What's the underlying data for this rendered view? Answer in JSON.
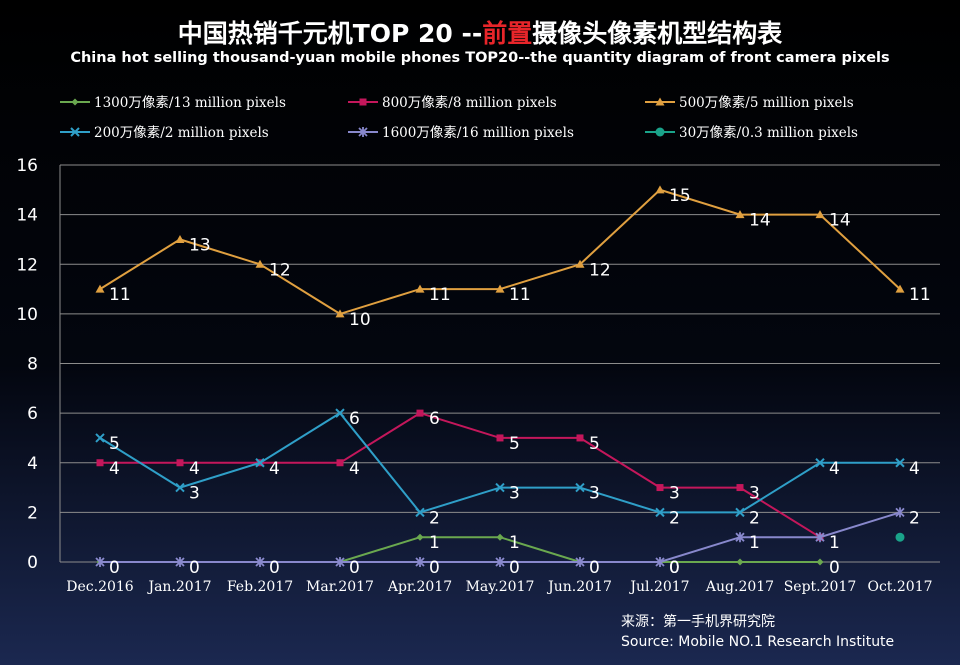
{
  "header": {
    "title_prefix": "中国热销千元机TOP 20 --",
    "title_highlight": "前置",
    "title_suffix": "摄像头像素机型结构表",
    "subtitle": "China hot selling thousand-yuan mobile phones TOP20--the quantity diagram of front camera pixels"
  },
  "source": {
    "line1": "来源：第一手机界研究院",
    "line2": "Source: Mobile NO.1 Research Institute"
  },
  "chart_data": {
    "type": "line",
    "title": "中国热销千元机TOP 20 --前置摄像头像素机型结构表",
    "subtitle": "China hot selling thousand-yuan mobile phones TOP20--the quantity diagram of front camera pixels",
    "categories": [
      "Dec.2016",
      "Jan.2017",
      "Feb.2017",
      "Mar.2017",
      "Apr.2017",
      "May.2017",
      "Jun.2017",
      "Jul.2017",
      "Aug.2017",
      "Sept.2017",
      "Oct.2017"
    ],
    "ylim": [
      0,
      16
    ],
    "yticks": [
      0,
      2,
      4,
      6,
      8,
      10,
      12,
      14,
      16
    ],
    "grid": true,
    "legend": "top",
    "series": [
      {
        "name": "1300万像素/13 million pixels",
        "color": "#6aa84f",
        "marker": "diamond",
        "values": [
          0,
          0,
          0,
          0,
          1,
          1,
          0,
          0,
          0,
          0,
          null
        ],
        "labels": [
          "0",
          "0",
          "0",
          "0",
          "1",
          "1",
          "0",
          "0",
          "",
          "0",
          ""
        ]
      },
      {
        "name": "800万像素/8 million pixels",
        "color": "#c4175b",
        "marker": "square",
        "values": [
          4,
          4,
          4,
          4,
          6,
          5,
          5,
          3,
          3,
          1,
          null
        ],
        "labels": [
          "4",
          "4",
          "4",
          "4",
          "6",
          "5",
          "5",
          "3",
          "3",
          "1",
          ""
        ]
      },
      {
        "name": "500万像素/5 million pixels",
        "color": "#e0a040",
        "marker": "triangle",
        "values": [
          11,
          13,
          12,
          10,
          11,
          11,
          12,
          15,
          14,
          14,
          11
        ],
        "labels": [
          "11",
          "13",
          "12",
          "10",
          "11",
          "11",
          "12",
          "15",
          "14",
          "14",
          "11"
        ]
      },
      {
        "name": "200万像素/2 million pixels",
        "color": "#2f9fc8",
        "marker": "x",
        "values": [
          5,
          3,
          4,
          6,
          2,
          3,
          3,
          2,
          2,
          4,
          4
        ],
        "labels": [
          "5",
          "3",
          "",
          "6",
          "2",
          "3",
          "3",
          "2",
          "2",
          "4",
          "4"
        ]
      },
      {
        "name": "1600万像素/16 million pixels",
        "color": "#8888cc",
        "marker": "star",
        "values": [
          0,
          0,
          0,
          0,
          0,
          0,
          0,
          0,
          1,
          1,
          2
        ],
        "labels": [
          "",
          "",
          "",
          "",
          "0",
          "0",
          "",
          "0",
          "1",
          "",
          "2"
        ]
      },
      {
        "name": "30万像素/0.3 million pixels",
        "color": "#1aa38a",
        "marker": "circle",
        "values": [
          null,
          null,
          null,
          null,
          null,
          null,
          null,
          null,
          null,
          null,
          1
        ],
        "labels": [
          "",
          "",
          "",
          "",
          "",
          "",
          "",
          "",
          "",
          "",
          ""
        ]
      }
    ]
  }
}
